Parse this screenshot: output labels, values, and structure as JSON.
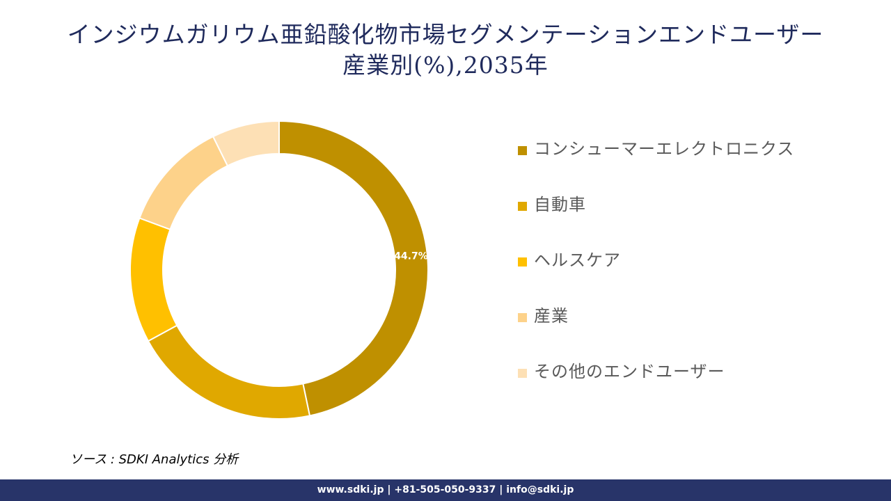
{
  "title": {
    "line1": "インジウムガリウム亜鉛酸化物市場セグメンテーションエンドユーザー",
    "line2": "産業別(%),2035年"
  },
  "chart_data": {
    "type": "pie",
    "style": "donut",
    "categories": [
      "コンシューマーエレクトロニクス",
      "自動車",
      "ヘルスケア",
      "産業",
      "その他のエンドユーザー"
    ],
    "values": [
      44.7,
      19.5,
      13.0,
      11.5,
      7.0
    ],
    "colors": [
      "#bf9000",
      "#e0a800",
      "#ffc000",
      "#fdd28a",
      "#fde0b5"
    ],
    "data_labels": [
      "44.7%",
      "",
      "",
      "",
      ""
    ],
    "legend_position": "right"
  },
  "source": "ソース : SDKI Analytics 分析",
  "footer": "www.sdki.jp | +81-505-050-9337 | info@sdki.jp"
}
